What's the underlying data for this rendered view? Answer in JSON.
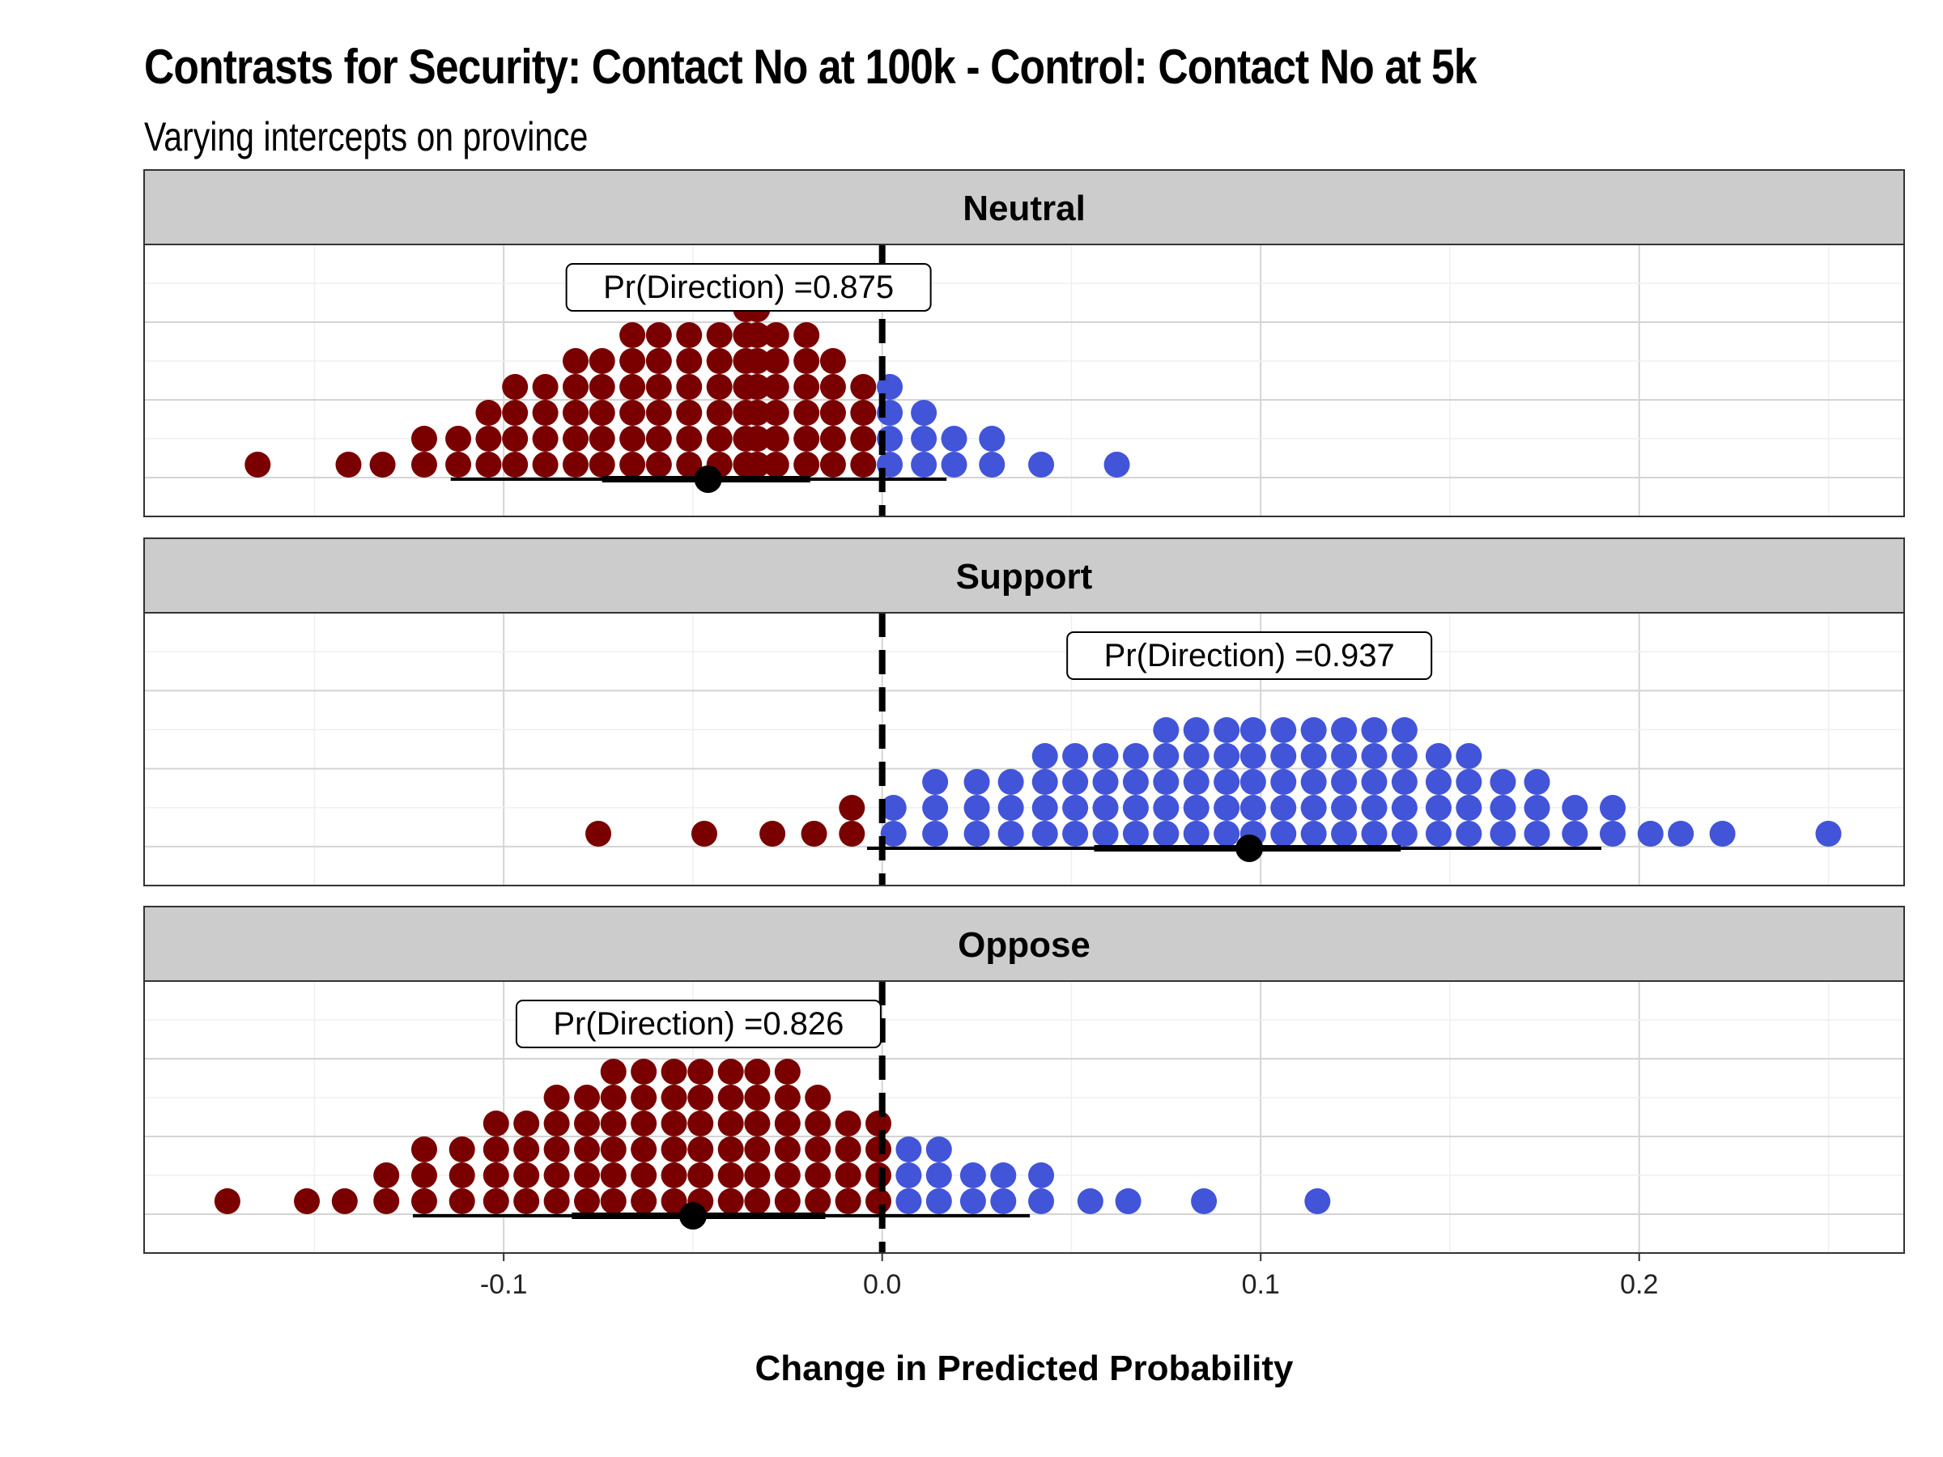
{
  "chart_data": {
    "type": "dotplot",
    "title": "Contrasts for Security: Contact No at 100k - Control: Contact No at 5k",
    "subtitle": "Varying intercepts on province",
    "xlabel": "Change in Predicted Probability",
    "xlim": [
      -0.195,
      0.27
    ],
    "x_ticks": [
      -0.1,
      0.0,
      0.1,
      0.2
    ],
    "x_tick_labels": [
      "-0.1",
      "0.0",
      "0.1",
      "0.2"
    ],
    "reference_line_x": 0.0,
    "colors": {
      "negative": "#7a0000",
      "positive": "#4254d8",
      "interval": "#000000",
      "strip_bg": "#cccccc"
    },
    "panels": [
      {
        "name": "Neutral",
        "pr_direction_label": "Pr(Direction) =0.875",
        "point_estimate": -0.046,
        "interval_66": [
          -0.074,
          -0.019
        ],
        "interval_95": [
          -0.114,
          0.017
        ],
        "dot_columns": [
          {
            "x": -0.165,
            "n": 1
          },
          {
            "x": -0.141,
            "n": 1
          },
          {
            "x": -0.132,
            "n": 1
          },
          {
            "x": -0.121,
            "n": 2
          },
          {
            "x": -0.112,
            "n": 2
          },
          {
            "x": -0.104,
            "n": 3
          },
          {
            "x": -0.097,
            "n": 4
          },
          {
            "x": -0.089,
            "n": 4
          },
          {
            "x": -0.081,
            "n": 5
          },
          {
            "x": -0.074,
            "n": 5
          },
          {
            "x": -0.066,
            "n": 6
          },
          {
            "x": -0.059,
            "n": 6
          },
          {
            "x": -0.051,
            "n": 6
          },
          {
            "x": -0.043,
            "n": 6
          },
          {
            "x": -0.036,
            "n": 7
          },
          {
            "x": -0.033,
            "n": 7
          },
          {
            "x": -0.028,
            "n": 6
          },
          {
            "x": -0.02,
            "n": 6
          },
          {
            "x": -0.013,
            "n": 5
          },
          {
            "x": -0.005,
            "n": 4
          },
          {
            "x": 0.002,
            "n": 4
          },
          {
            "x": 0.011,
            "n": 3
          },
          {
            "x": 0.019,
            "n": 2
          },
          {
            "x": 0.029,
            "n": 2
          },
          {
            "x": 0.042,
            "n": 1
          },
          {
            "x": 0.062,
            "n": 1
          }
        ]
      },
      {
        "name": "Support",
        "pr_direction_label": "Pr(Direction) =0.937",
        "point_estimate": 0.097,
        "interval_66": [
          0.056,
          0.137
        ],
        "interval_95": [
          -0.004,
          0.19
        ],
        "dot_columns": [
          {
            "x": -0.075,
            "n": 1
          },
          {
            "x": -0.047,
            "n": 1
          },
          {
            "x": -0.029,
            "n": 1
          },
          {
            "x": -0.018,
            "n": 1
          },
          {
            "x": -0.008,
            "n": 2
          },
          {
            "x": 0.003,
            "n": 2
          },
          {
            "x": 0.014,
            "n": 3
          },
          {
            "x": 0.025,
            "n": 3
          },
          {
            "x": 0.034,
            "n": 3
          },
          {
            "x": 0.043,
            "n": 4
          },
          {
            "x": 0.051,
            "n": 4
          },
          {
            "x": 0.059,
            "n": 4
          },
          {
            "x": 0.067,
            "n": 4
          },
          {
            "x": 0.075,
            "n": 5
          },
          {
            "x": 0.083,
            "n": 5
          },
          {
            "x": 0.091,
            "n": 5
          },
          {
            "x": 0.098,
            "n": 5
          },
          {
            "x": 0.106,
            "n": 5
          },
          {
            "x": 0.114,
            "n": 5
          },
          {
            "x": 0.122,
            "n": 5
          },
          {
            "x": 0.13,
            "n": 5
          },
          {
            "x": 0.138,
            "n": 5
          },
          {
            "x": 0.147,
            "n": 4
          },
          {
            "x": 0.155,
            "n": 4
          },
          {
            "x": 0.164,
            "n": 3
          },
          {
            "x": 0.173,
            "n": 3
          },
          {
            "x": 0.183,
            "n": 2
          },
          {
            "x": 0.193,
            "n": 2
          },
          {
            "x": 0.203,
            "n": 1
          },
          {
            "x": 0.211,
            "n": 1
          },
          {
            "x": 0.222,
            "n": 1
          },
          {
            "x": 0.25,
            "n": 1
          }
        ]
      },
      {
        "name": "Oppose",
        "pr_direction_label": "Pr(Direction) =0.826",
        "point_estimate": -0.05,
        "interval_66": [
          -0.082,
          -0.015
        ],
        "interval_95": [
          -0.124,
          0.039
        ],
        "dot_columns": [
          {
            "x": -0.173,
            "n": 1
          },
          {
            "x": -0.152,
            "n": 1
          },
          {
            "x": -0.142,
            "n": 1
          },
          {
            "x": -0.131,
            "n": 2
          },
          {
            "x": -0.121,
            "n": 3
          },
          {
            "x": -0.111,
            "n": 3
          },
          {
            "x": -0.102,
            "n": 4
          },
          {
            "x": -0.094,
            "n": 4
          },
          {
            "x": -0.086,
            "n": 5
          },
          {
            "x": -0.078,
            "n": 5
          },
          {
            "x": -0.071,
            "n": 6
          },
          {
            "x": -0.063,
            "n": 6
          },
          {
            "x": -0.055,
            "n": 6
          },
          {
            "x": -0.048,
            "n": 6
          },
          {
            "x": -0.04,
            "n": 6
          },
          {
            "x": -0.033,
            "n": 6
          },
          {
            "x": -0.025,
            "n": 6
          },
          {
            "x": -0.017,
            "n": 5
          },
          {
            "x": -0.009,
            "n": 4
          },
          {
            "x": -0.001,
            "n": 4
          },
          {
            "x": 0.007,
            "n": 3
          },
          {
            "x": 0.015,
            "n": 3
          },
          {
            "x": 0.024,
            "n": 2
          },
          {
            "x": 0.032,
            "n": 2
          },
          {
            "x": 0.042,
            "n": 2
          },
          {
            "x": 0.055,
            "n": 1
          },
          {
            "x": 0.065,
            "n": 1
          },
          {
            "x": 0.085,
            "n": 1
          },
          {
            "x": 0.115,
            "n": 1
          }
        ]
      }
    ]
  }
}
